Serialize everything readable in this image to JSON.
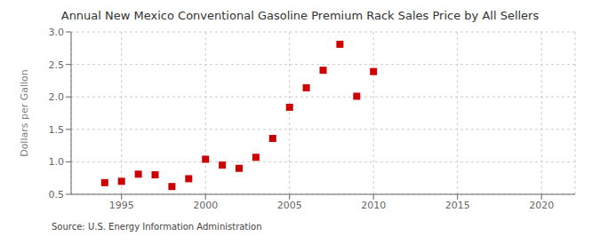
{
  "chart_data": {
    "type": "scatter",
    "title": "Annual New Mexico Conventional Gasoline Premium Rack Sales Price by All Sellers",
    "ylabel": "Dollars per Gallon",
    "annotations": [
      "Source: U.S. Energy Information Administration"
    ],
    "x": [
      1994,
      1995,
      1996,
      1997,
      1998,
      1999,
      2000,
      2001,
      2002,
      2003,
      2004,
      2005,
      2006,
      2007,
      2008,
      2009,
      2010
    ],
    "values": [
      0.68,
      0.7,
      0.81,
      0.8,
      0.62,
      0.74,
      1.04,
      0.95,
      0.9,
      1.07,
      1.36,
      1.84,
      2.14,
      2.41,
      2.81,
      2.01,
      2.39
    ],
    "color": "#cc0000",
    "marker": "square",
    "xlim": [
      1992,
      2022
    ],
    "ylim": [
      0.5,
      3.0
    ],
    "xticks": [
      1995,
      2000,
      2005,
      2010,
      2015,
      2020
    ],
    "yticks": [
      0.5,
      {
        "value": 1,
        "label": "1.0"
      },
      1.5,
      {
        "value": 2,
        "label": "2.0"
      },
      2.5,
      {
        "value": 3,
        "label": "3.0"
      }
    ],
    "grid": true
  }
}
